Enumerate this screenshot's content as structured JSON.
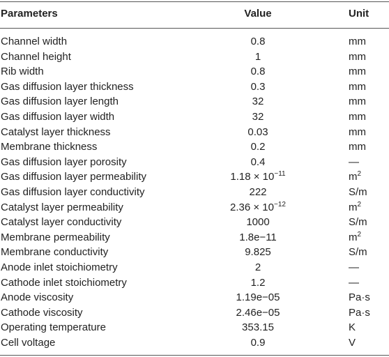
{
  "table": {
    "header": [
      "Parameters",
      "Value",
      "Unit"
    ],
    "rows": [
      [
        "Channel width",
        "0.8",
        "mm"
      ],
      [
        "Channel height",
        "1",
        "mm"
      ],
      [
        "Rib width",
        "0.8",
        "mm"
      ],
      [
        "Gas diffusion layer thickness",
        "0.3",
        "mm"
      ],
      [
        "Gas diffusion layer length",
        "32",
        "mm"
      ],
      [
        "Gas diffusion layer width",
        "32",
        "mm"
      ],
      [
        "Catalyst layer thickness",
        "0.03",
        "mm"
      ],
      [
        "Membrane thickness",
        "0.2",
        "mm"
      ],
      [
        "Gas diffusion layer porosity",
        "0.4",
        "—"
      ],
      [
        "Gas diffusion layer permeability",
        {
          "base": "1.18 × 10",
          "sup": "−11"
        },
        {
          "base": "m",
          "sup": "2"
        }
      ],
      [
        "Gas diffusion layer conductivity",
        "222",
        "S/m"
      ],
      [
        "Catalyst layer permeability",
        {
          "base": "2.36 × 10",
          "sup": "−12"
        },
        {
          "base": "m",
          "sup": "2"
        }
      ],
      [
        "Catalyst layer conductivity",
        "1000",
        "S/m"
      ],
      [
        "Membrane permeability",
        "1.8e−11",
        {
          "base": "m",
          "sup": "2"
        }
      ],
      [
        "Membrane conductivity",
        "9.825",
        "S/m"
      ],
      [
        "Anode inlet stoichiometry",
        "2",
        "—"
      ],
      [
        "Cathode inlet stoichiometry",
        "1.2",
        "—"
      ],
      [
        "Anode viscosity",
        "1.19e−05",
        "Pa·s"
      ],
      [
        "Cathode viscosity",
        "2.46e−05",
        "Pa·s"
      ],
      [
        "Operating temperature",
        "353.15",
        "K"
      ],
      [
        "Cell voltage",
        "0.9",
        "V"
      ]
    ]
  }
}
